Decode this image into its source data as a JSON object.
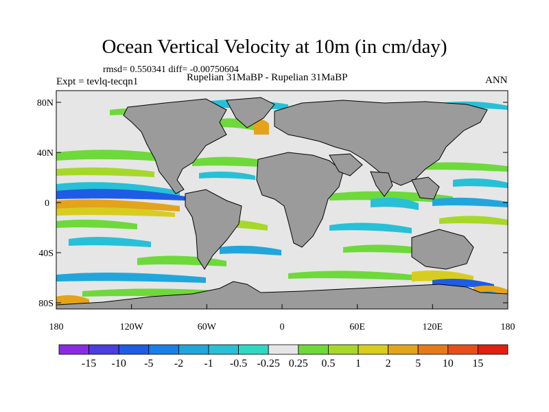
{
  "header": {
    "title": "Ocean Vertical Velocity at 10m (in cm/day)",
    "stats": "rmsd= 0.550341 diff= -0.00750604",
    "experiment": "Expt = tevlq-tecqn1",
    "comparison": "Rupelian  31MaBP - Rupelian  31MaBP",
    "season": "ANN"
  },
  "map": {
    "lat_labels": [
      "80N",
      "40N",
      "0",
      "40S",
      "80S"
    ],
    "lon_labels": [
      "180",
      "120W",
      "60W",
      "0",
      "60E",
      "120E",
      "180"
    ],
    "colors": {
      "land": "#9b9b9b",
      "ocean_neutral": "#e6e6e6",
      "coast": "#000000"
    }
  },
  "colorbar": {
    "labels": [
      "-15",
      "-10",
      "-5",
      "-2",
      "-1",
      "-0.5",
      "-0.25",
      "0.25",
      "0.5",
      "1",
      "2",
      "5",
      "10",
      "15"
    ],
    "colors": [
      "#8a2be2",
      "#4b3fe0",
      "#1f5ce6",
      "#1a7fe6",
      "#21a6dc",
      "#28c0d6",
      "#30d8c2",
      "#e6e6e6",
      "#6ed93a",
      "#a6d82a",
      "#d8cd1e",
      "#e3a41c",
      "#e67a1a",
      "#e65018",
      "#e02010"
    ]
  }
}
